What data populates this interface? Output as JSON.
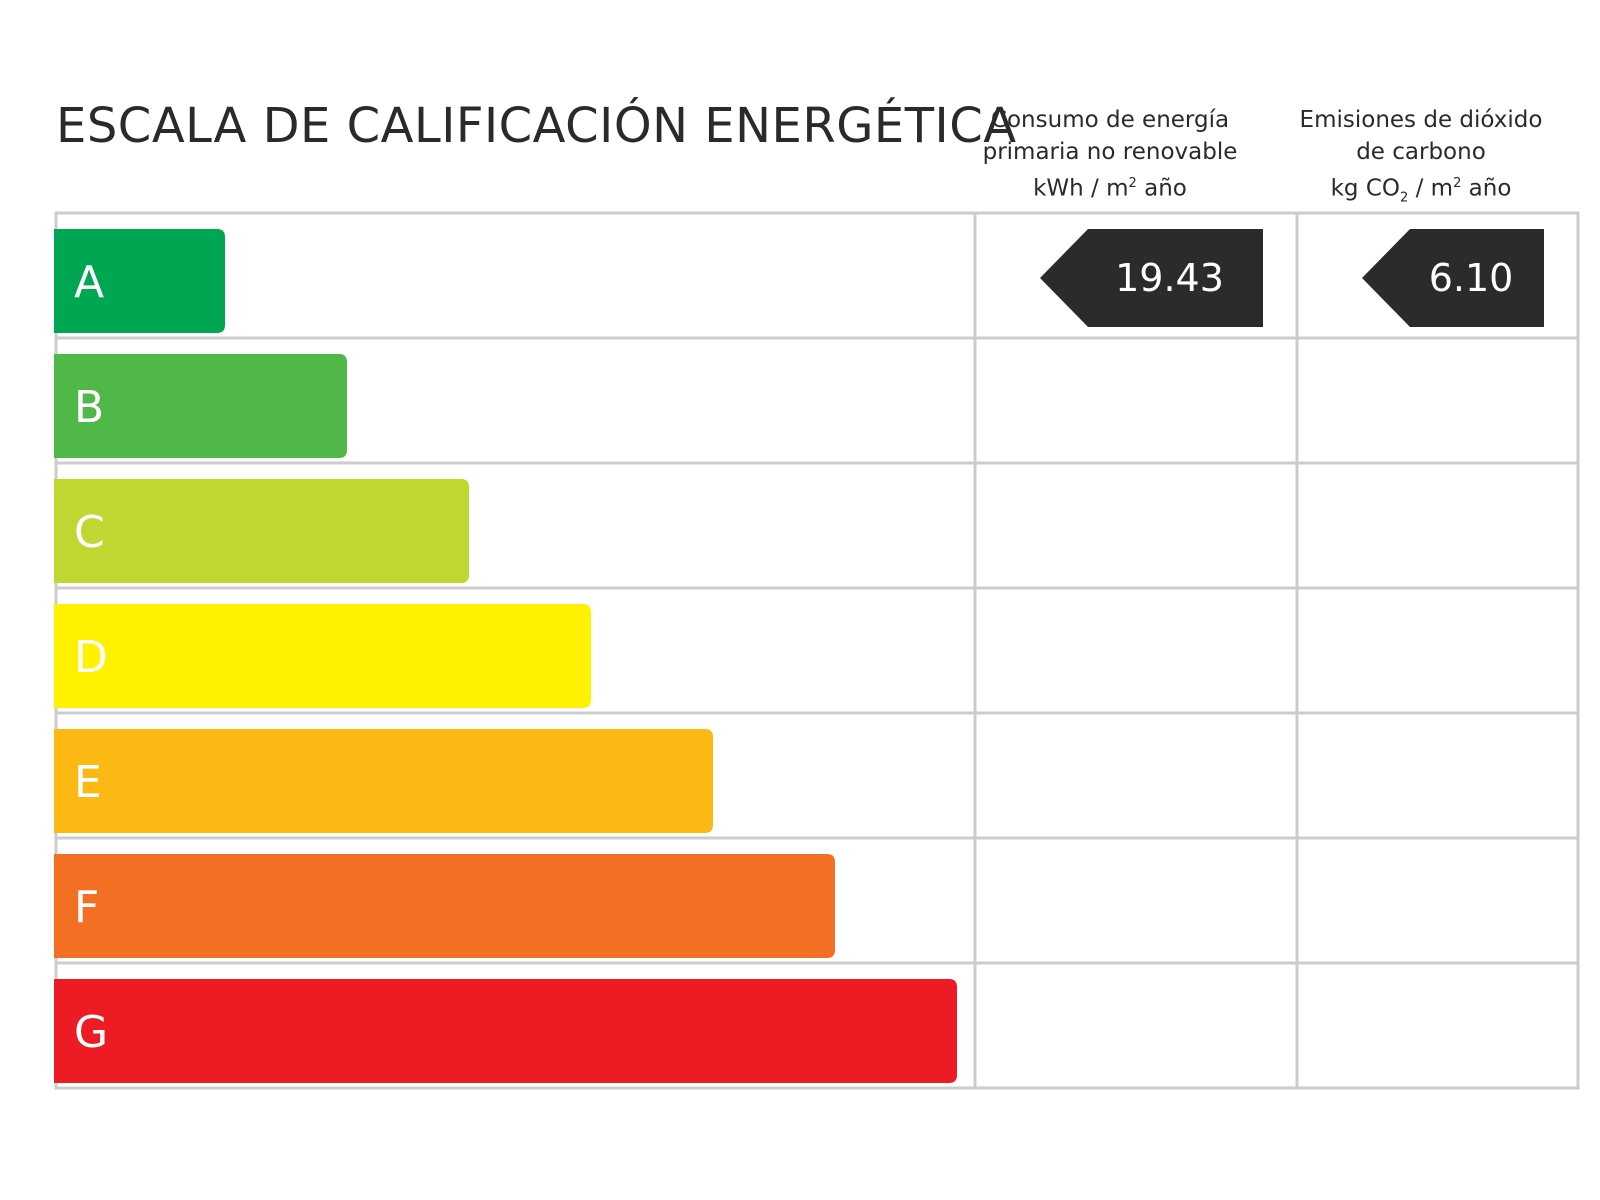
{
  "title": "ESCALA DE CALIFICACIÓN ENERGÉTICA",
  "columns": {
    "energy": {
      "line1": "Consumo de energía",
      "line2": "primaria no renovable",
      "unit_pre": "kWh / m",
      "unit_sup": "2",
      "unit_post": " año"
    },
    "emissions": {
      "line1": "Emisiones de dióxido",
      "line2": "de carbono",
      "unit_pre": "kg CO",
      "unit_sub": "2",
      "unit_mid": " / m",
      "unit_sup": "2",
      "unit_post": " año"
    }
  },
  "chart_data": {
    "type": "table",
    "ratings": [
      {
        "letter": "A",
        "color": "#00a651",
        "level": 1
      },
      {
        "letter": "B",
        "color": "#4fb848",
        "level": 2
      },
      {
        "letter": "C",
        "color": "#bfd730",
        "level": 3
      },
      {
        "letter": "D",
        "color": "#fff200",
        "level": 4
      },
      {
        "letter": "E",
        "color": "#fdb913",
        "level": 5
      },
      {
        "letter": "F",
        "color": "#f36f24",
        "level": 6
      },
      {
        "letter": "G",
        "color": "#ed1c24",
        "level": 7
      }
    ],
    "energy_rating": {
      "letter": "A",
      "value": "19.43"
    },
    "emissions_rating": {
      "letter": "A",
      "value": "6.10"
    },
    "tag_color": "#2b2b2b",
    "grid_color": "#cccccc"
  }
}
